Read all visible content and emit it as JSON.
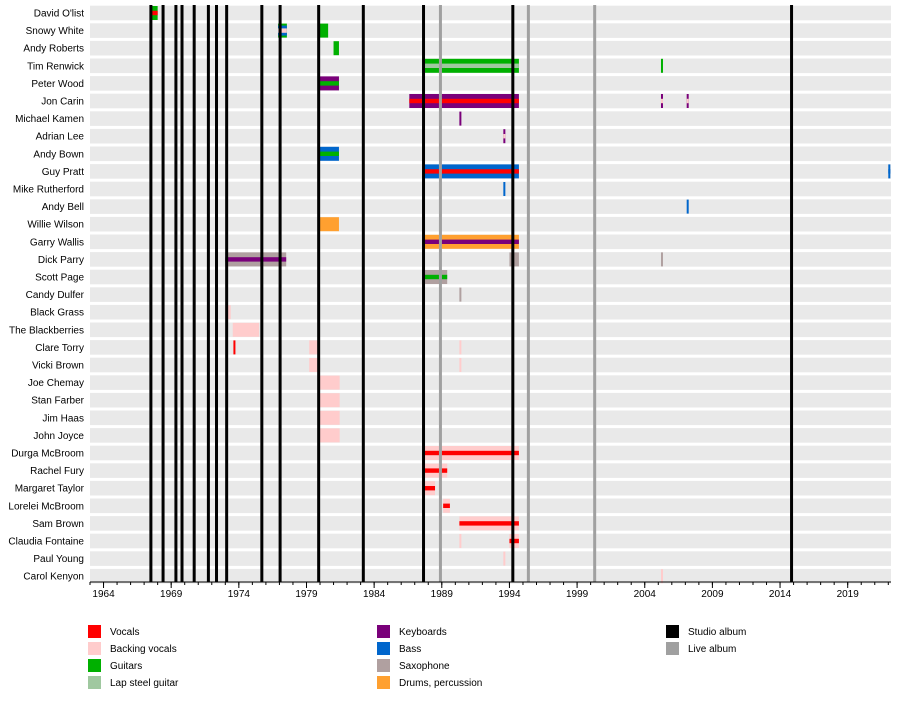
{
  "chart_data": {
    "type": "timeline",
    "xlim": [
      1963,
      2022.2
    ],
    "x_ticks": [
      1964,
      1969,
      1974,
      1979,
      1984,
      1989,
      1994,
      1999,
      2004,
      2009,
      2014,
      2019
    ],
    "grid": false,
    "legend_placement": "bottom",
    "colors": {
      "vocals": "#ff0000",
      "backing": "#ffcccc",
      "guitars": "#00b000",
      "lapsteel": "#a0c8a0",
      "keyboards": "#7a007a",
      "bass": "#0066cc",
      "sax": "#b0a0a0",
      "drums": "#ffa030",
      "studio": "#000000",
      "live": "#a0a0a0"
    },
    "legend": [
      {
        "key": "vocals",
        "label": "Vocals"
      },
      {
        "key": "backing",
        "label": "Backing vocals"
      },
      {
        "key": "guitars",
        "label": "Guitars"
      },
      {
        "key": "lapsteel",
        "label": "Lap steel guitar"
      },
      {
        "key": "keyboards",
        "label": "Keyboards"
      },
      {
        "key": "bass",
        "label": "Bass"
      },
      {
        "key": "sax",
        "label": "Saxophone"
      },
      {
        "key": "drums",
        "label": "Drums, percussion"
      },
      {
        "key": "studio",
        "label": "Studio album"
      },
      {
        "key": "live",
        "label": "Live album"
      }
    ],
    "studio_albums": [
      1967.5,
      1968.4,
      1969.35,
      1969.8,
      1970.7,
      1971.75,
      1972.35,
      1973.1,
      1975.7,
      1977.05,
      1979.9,
      1983.2,
      1987.65,
      1994.25,
      2014.85
    ],
    "live_albums": [
      1988.9,
      1995.4,
      2000.3
    ],
    "rows": [
      {
        "name": "David O'list",
        "bars": [
          {
            "from": 1967.5,
            "to": 1968.0,
            "main": "guitars",
            "inner": "vocals"
          }
        ]
      },
      {
        "name": "Snowy White",
        "bars": [
          {
            "from": 1976.9,
            "to": 1977.55,
            "main": "bass",
            "inner": "backing",
            "outer": "guitars"
          },
          {
            "from": 1979.9,
            "to": 1980.6,
            "main": "guitars"
          }
        ]
      },
      {
        "name": "Andy Roberts",
        "bars": [
          {
            "from": 1981.0,
            "to": 1981.4,
            "main": "guitars"
          }
        ]
      },
      {
        "name": "Tim Renwick",
        "bars": [
          {
            "from": 1987.6,
            "to": 1994.7,
            "main": "guitars",
            "inner": "lapsteel"
          },
          {
            "from": 2005.2,
            "to": 2005.2,
            "main": "guitars"
          }
        ]
      },
      {
        "name": "Peter Wood",
        "bars": [
          {
            "from": 1979.9,
            "to": 1981.4,
            "main": "keyboards",
            "inner": "guitars"
          }
        ]
      },
      {
        "name": "Jon Carin",
        "bars": [
          {
            "from": 1986.6,
            "to": 1994.7,
            "main": "keyboards",
            "inner": "vocals"
          },
          {
            "from": 2005.2,
            "to": 2005.2,
            "main": "keyboards",
            "inner": "backing"
          },
          {
            "from": 2007.1,
            "to": 2007.1,
            "main": "keyboards",
            "inner": "backing"
          }
        ]
      },
      {
        "name": "Michael Kamen",
        "bars": [
          {
            "from": 1990.3,
            "to": 1990.3,
            "main": "keyboards"
          }
        ]
      },
      {
        "name": "Adrian Lee",
        "bars": [
          {
            "from": 1993.55,
            "to": 1993.55,
            "main": "keyboards",
            "inner": "backing"
          }
        ]
      },
      {
        "name": "Andy Bown",
        "bars": [
          {
            "from": 1979.9,
            "to": 1981.4,
            "main": "bass",
            "inner": "guitars"
          }
        ]
      },
      {
        "name": "Guy Pratt",
        "bars": [
          {
            "from": 1987.6,
            "to": 1994.7,
            "main": "bass",
            "inner": "vocals"
          },
          {
            "from": 2022.0,
            "to": 2022.1,
            "main": "bass",
            "inner": "bass"
          }
        ]
      },
      {
        "name": "Mike Rutherford",
        "bars": [
          {
            "from": 1993.55,
            "to": 1993.55,
            "main": "bass"
          }
        ]
      },
      {
        "name": "Andy Bell",
        "bars": [
          {
            "from": 2007.1,
            "to": 2007.1,
            "main": "bass"
          }
        ]
      },
      {
        "name": "Willie Wilson",
        "bars": [
          {
            "from": 1979.9,
            "to": 1981.4,
            "main": "drums"
          }
        ]
      },
      {
        "name": "Garry Wallis",
        "bars": [
          {
            "from": 1987.6,
            "to": 1994.7,
            "main": "drums",
            "inner": "keyboards"
          }
        ]
      },
      {
        "name": "Dick Parry",
        "bars": [
          {
            "from": 1973.0,
            "to": 1977.5,
            "main": "sax",
            "inner": "keyboards"
          },
          {
            "from": 1994.0,
            "to": 1994.7,
            "main": "sax"
          },
          {
            "from": 2005.2,
            "to": 2005.2,
            "main": "sax"
          }
        ]
      },
      {
        "name": "Scott Page",
        "bars": [
          {
            "from": 1987.6,
            "to": 1989.4,
            "main": "sax",
            "inner": "guitars"
          }
        ]
      },
      {
        "name": "Candy Dulfer",
        "bars": [
          {
            "from": 1990.3,
            "to": 1990.3,
            "main": "sax"
          }
        ]
      },
      {
        "name": "Black Grass",
        "bars": [
          {
            "from": 1973.0,
            "to": 1973.4,
            "main": "backing"
          }
        ]
      },
      {
        "name": "The Blackberries",
        "bars": [
          {
            "from": 1973.55,
            "to": 1975.5,
            "main": "backing"
          }
        ]
      },
      {
        "name": "Clare Torry",
        "bars": [
          {
            "from": 1973.6,
            "to": 1973.6,
            "main": "vocals"
          },
          {
            "from": 1979.2,
            "to": 1979.9,
            "main": "backing"
          },
          {
            "from": 1990.3,
            "to": 1990.3,
            "main": "backing"
          }
        ]
      },
      {
        "name": "Vicki Brown",
        "bars": [
          {
            "from": 1979.2,
            "to": 1979.9,
            "main": "backing"
          },
          {
            "from": 1990.3,
            "to": 1990.3,
            "main": "backing"
          }
        ]
      },
      {
        "name": "Joe Chemay",
        "bars": [
          {
            "from": 1979.9,
            "to": 1981.45,
            "main": "backing"
          }
        ]
      },
      {
        "name": "Stan Farber",
        "bars": [
          {
            "from": 1979.9,
            "to": 1981.45,
            "main": "backing"
          }
        ]
      },
      {
        "name": "Jim Haas",
        "bars": [
          {
            "from": 1979.9,
            "to": 1981.45,
            "main": "backing"
          }
        ]
      },
      {
        "name": "John Joyce",
        "bars": [
          {
            "from": 1979.9,
            "to": 1981.45,
            "main": "backing"
          }
        ]
      },
      {
        "name": "Durga McBroom",
        "bars": [
          {
            "from": 1987.6,
            "to": 1994.7,
            "main": "backing",
            "inner": "vocals"
          }
        ]
      },
      {
        "name": "Rachel Fury",
        "bars": [
          {
            "from": 1987.6,
            "to": 1989.4,
            "main": "backing",
            "inner": "vocals"
          }
        ]
      },
      {
        "name": "Margaret Taylor",
        "bars": [
          {
            "from": 1987.6,
            "to": 1988.5,
            "main": "backing",
            "inner": "vocals"
          }
        ]
      },
      {
        "name": "Lorelei McBroom",
        "bars": [
          {
            "from": 1989.1,
            "to": 1989.6,
            "main": "backing",
            "inner": "vocals"
          }
        ]
      },
      {
        "name": "Sam Brown",
        "bars": [
          {
            "from": 1990.3,
            "to": 1994.7,
            "main": "backing",
            "inner": "vocals"
          }
        ]
      },
      {
        "name": "Claudia Fontaine",
        "bars": [
          {
            "from": 1994.0,
            "to": 1994.7,
            "main": "backing",
            "inner": "vocals"
          },
          {
            "from": 1990.3,
            "to": 1990.3,
            "main": "backing"
          }
        ]
      },
      {
        "name": "Paul Young",
        "bars": [
          {
            "from": 1993.55,
            "to": 1993.55,
            "main": "backing"
          }
        ]
      },
      {
        "name": "Carol Kenyon",
        "bars": [
          {
            "from": 2005.2,
            "to": 2005.2,
            "main": "backing"
          }
        ]
      }
    ]
  }
}
